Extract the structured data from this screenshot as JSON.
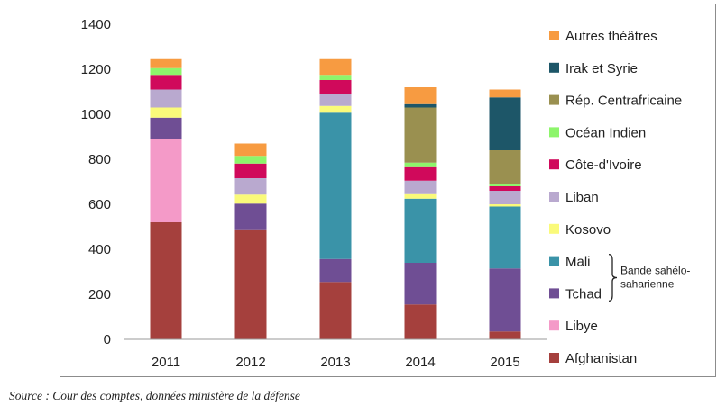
{
  "chart_data": {
    "type": "bar",
    "stacked": true,
    "title": "",
    "xlabel": "",
    "ylabel": "",
    "categories": [
      "2011",
      "2012",
      "2013",
      "2014",
      "2015"
    ],
    "ylim": [
      0,
      1400
    ],
    "yticks": [
      0,
      200,
      400,
      600,
      800,
      1000,
      1200,
      1400
    ],
    "grid": false,
    "legend_position": "right",
    "series": [
      {
        "name": "Afghanistan",
        "color": "#A5403D",
        "values": [
          520,
          485,
          255,
          155,
          35
        ]
      },
      {
        "name": "Libye",
        "color": "#F49AC8",
        "values": [
          370,
          0,
          0,
          0,
          0
        ]
      },
      {
        "name": "Tchad",
        "color": "#6F4E94",
        "values": [
          95,
          118,
          102,
          185,
          280
        ]
      },
      {
        "name": "Mali",
        "color": "#3A93A8",
        "values": [
          0,
          0,
          650,
          285,
          275
        ]
      },
      {
        "name": "Kosovo",
        "color": "#FAFA7A",
        "values": [
          45,
          40,
          30,
          20,
          10
        ]
      },
      {
        "name": "Liban",
        "color": "#B9A9CF",
        "values": [
          80,
          73,
          55,
          60,
          60
        ]
      },
      {
        "name": "Côte-d'Ivoire",
        "color": "#D0095B",
        "values": [
          65,
          65,
          60,
          60,
          20
        ]
      },
      {
        "name": "Océan Indien",
        "color": "#8DF56B",
        "values": [
          30,
          34,
          23,
          20,
          10
        ]
      },
      {
        "name": "Rép. Centrafricaine",
        "color": "#9A9050",
        "values": [
          0,
          0,
          0,
          245,
          150
        ]
      },
      {
        "name": "Irak et Syrie",
        "color": "#1D5668",
        "values": [
          0,
          0,
          0,
          15,
          235
        ]
      },
      {
        "name": "Autres théâtres",
        "color": "#F79B41",
        "values": [
          40,
          55,
          70,
          75,
          35
        ]
      }
    ],
    "bracket": {
      "label_lines": [
        "Bande sahélo-",
        "saharienne"
      ],
      "covers": [
        "Mali",
        "Tchad"
      ]
    }
  },
  "source_text": "Source : Cour des comptes, données ministère de la défense"
}
